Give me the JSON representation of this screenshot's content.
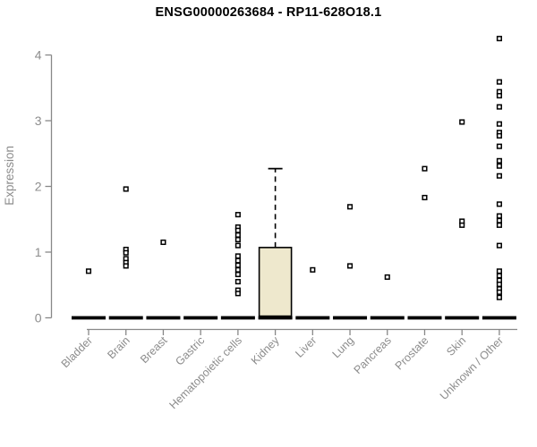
{
  "title": "ENSG00000263684 - RP11-628O18.1",
  "y_axis": {
    "label": "Expression",
    "tick_labels": [
      "0",
      "1",
      "2",
      "3",
      "4"
    ]
  },
  "chart_data": {
    "type": "boxplot",
    "title": "ENSG00000263684 - RP11-628O18.1",
    "xlabel": "",
    "ylabel": "Expression",
    "ylim": [
      0,
      4.35
    ],
    "yticks": [
      0,
      1,
      2,
      3,
      4
    ],
    "grid": false,
    "legend": false,
    "categories": [
      "Bladder",
      "Brain",
      "Breast",
      "Gastric",
      "Hematopoietic cells",
      "Kidney",
      "Liver",
      "Lung",
      "Pancreas",
      "Prostate",
      "Skin",
      "Unknown / Other"
    ],
    "baseline": {
      "value": 0,
      "style": "thick-dashed-black",
      "note": "every category shows a thick dashed median segment at expression 0"
    },
    "boxes": [
      {
        "category": "Kidney",
        "whisker_low": 0,
        "q1": 0,
        "median": 0,
        "q3": 1.07,
        "whisker_high": 2.27
      }
    ],
    "outliers": {
      "Bladder": [
        0.71
      ],
      "Brain": [
        1.96,
        1.04,
        0.99,
        0.9,
        0.84,
        0.79
      ],
      "Breast": [
        1.15
      ],
      "Gastric": [],
      "Hematopoietic cells": [
        1.57,
        1.38,
        1.33,
        1.26,
        1.19,
        1.1,
        0.94,
        0.87,
        0.8,
        0.73,
        0.66,
        0.55,
        0.42,
        0.37
      ],
      "Kidney": [],
      "Liver": [
        0.73
      ],
      "Lung": [
        1.69,
        0.79
      ],
      "Pancreas": [
        0.62
      ],
      "Prostate": [
        2.27,
        1.83
      ],
      "Skin": [
        2.98,
        1.47,
        1.41
      ],
      "Unknown / Other": [
        4.25,
        3.59,
        3.44,
        3.38,
        3.21,
        2.95,
        2.82,
        2.77,
        2.61,
        2.39,
        2.31,
        2.16,
        1.73,
        1.55,
        1.48,
        1.41,
        1.1,
        0.71,
        0.64,
        0.57,
        0.51,
        0.44,
        0.39,
        0.31
      ]
    }
  },
  "colors": {
    "background": "#ffffff",
    "title_text": "#000000",
    "axis_line": "#888888",
    "axis_text": "#8c8c8c",
    "box_fill": "#eee8cd",
    "box_border": "#000000",
    "point": "#000000",
    "point_fill": "#ffffff",
    "median_dash": "#000000"
  }
}
